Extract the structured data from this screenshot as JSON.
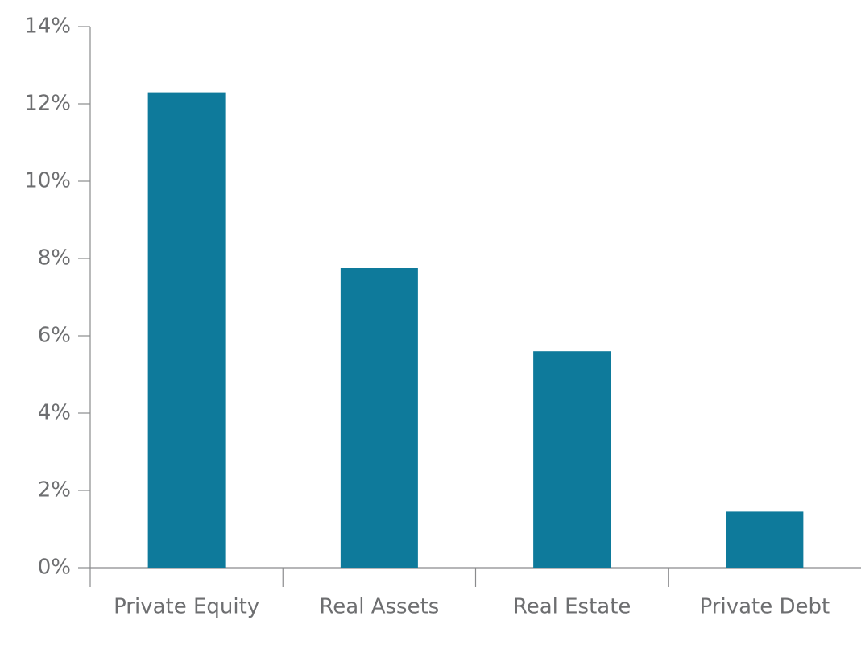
{
  "chart_data": {
    "type": "bar",
    "categories": [
      "Private Equity",
      "Real Assets",
      "Real Estate",
      "Private Debt"
    ],
    "values": [
      12.3,
      7.75,
      5.6,
      1.45
    ],
    "color": "#0e7a9b",
    "ylim": [
      0,
      14
    ],
    "yticks": [
      {
        "value": 0,
        "label": "0%"
      },
      {
        "value": 2,
        "label": "2%"
      },
      {
        "value": 4,
        "label": "4%"
      },
      {
        "value": 6,
        "label": "6%"
      },
      {
        "value": 8,
        "label": "8%"
      },
      {
        "value": 10,
        "label": "10%"
      },
      {
        "value": 12,
        "label": "12%"
      },
      {
        "value": 14,
        "label": "14%"
      }
    ],
    "grid": false
  }
}
